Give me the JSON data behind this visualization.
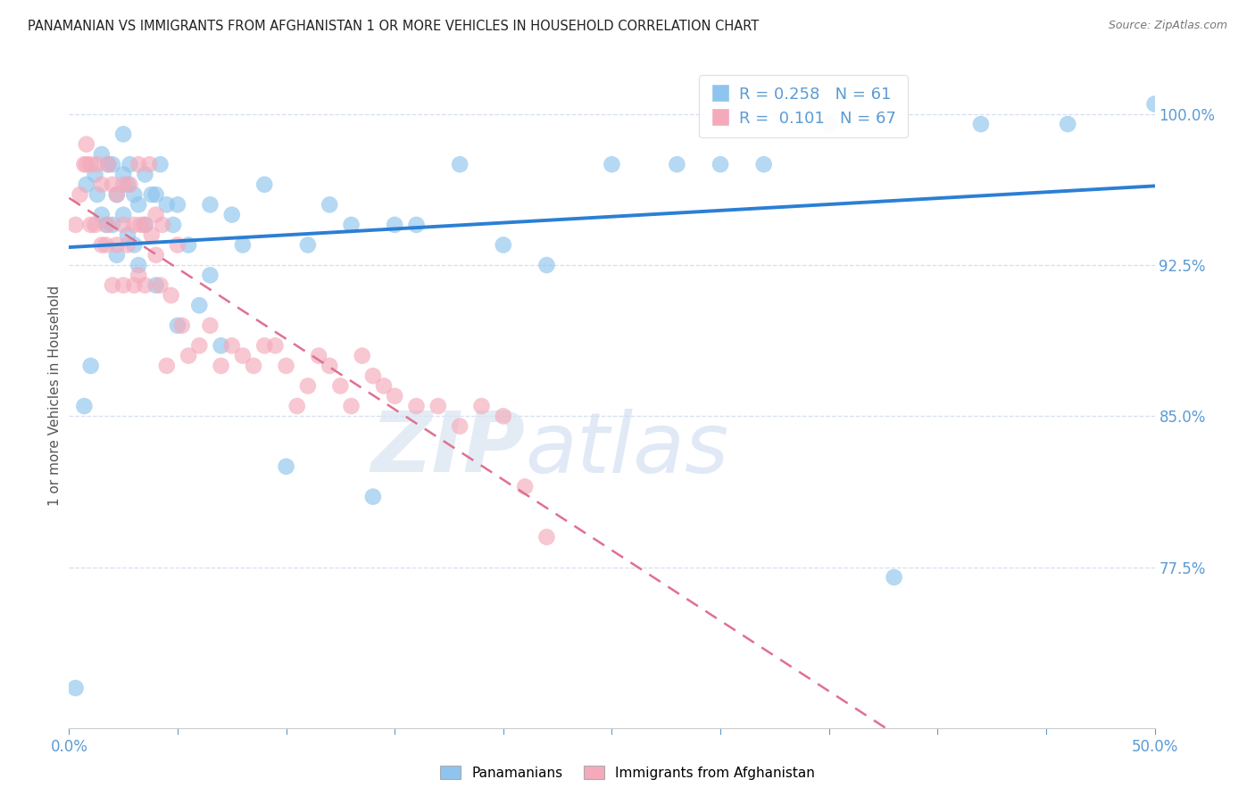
{
  "title": "PANAMANIAN VS IMMIGRANTS FROM AFGHANISTAN 1 OR MORE VEHICLES IN HOUSEHOLD CORRELATION CHART",
  "source": "Source: ZipAtlas.com",
  "ylabel": "1 or more Vehicles in Household",
  "xlim": [
    0.0,
    0.5
  ],
  "ylim": [
    0.695,
    1.025
  ],
  "yticks": [
    0.775,
    0.85,
    0.925,
    1.0
  ],
  "ytick_labels": [
    "77.5%",
    "85.0%",
    "92.5%",
    "100.0%"
  ],
  "xticks": [
    0.0,
    0.05,
    0.1,
    0.15,
    0.2,
    0.25,
    0.3,
    0.35,
    0.4,
    0.45,
    0.5
  ],
  "xtick_labels": [
    "0.0%",
    "",
    "",
    "",
    "",
    "",
    "",
    "",
    "",
    "",
    "50.0%"
  ],
  "blue_R": 0.258,
  "blue_N": 61,
  "pink_R": 0.101,
  "pink_N": 67,
  "legend_label_blue": "Panamanians",
  "legend_label_pink": "Immigrants from Afghanistan",
  "watermark_zip": "ZIP",
  "watermark_atlas": "atlas",
  "blue_color": "#8EC4EE",
  "pink_color": "#F4AABB",
  "axis_color": "#5B9BD5",
  "trend_blue_color": "#2B7FD4",
  "trend_pink_color": "#E07090",
  "grid_color": "#D5DEF0",
  "blue_scatter_x": [
    0.003,
    0.007,
    0.008,
    0.01,
    0.012,
    0.013,
    0.015,
    0.015,
    0.017,
    0.018,
    0.02,
    0.02,
    0.022,
    0.022,
    0.025,
    0.025,
    0.025,
    0.027,
    0.027,
    0.028,
    0.03,
    0.03,
    0.032,
    0.032,
    0.035,
    0.035,
    0.038,
    0.04,
    0.04,
    0.042,
    0.045,
    0.048,
    0.05,
    0.05,
    0.055,
    0.06,
    0.065,
    0.065,
    0.07,
    0.075,
    0.08,
    0.09,
    0.1,
    0.11,
    0.12,
    0.13,
    0.14,
    0.15,
    0.16,
    0.18,
    0.2,
    0.22,
    0.25,
    0.28,
    0.3,
    0.32,
    0.35,
    0.38,
    0.42,
    0.46,
    0.5
  ],
  "blue_scatter_y": [
    0.715,
    0.855,
    0.965,
    0.875,
    0.97,
    0.96,
    0.95,
    0.98,
    0.945,
    0.975,
    0.945,
    0.975,
    0.93,
    0.96,
    0.95,
    0.97,
    0.99,
    0.94,
    0.965,
    0.975,
    0.935,
    0.96,
    0.925,
    0.955,
    0.945,
    0.97,
    0.96,
    0.915,
    0.96,
    0.975,
    0.955,
    0.945,
    0.895,
    0.955,
    0.935,
    0.905,
    0.92,
    0.955,
    0.885,
    0.95,
    0.935,
    0.965,
    0.825,
    0.935,
    0.955,
    0.945,
    0.81,
    0.945,
    0.945,
    0.975,
    0.935,
    0.925,
    0.975,
    0.975,
    0.975,
    0.975,
    0.995,
    0.77,
    0.995,
    0.995,
    1.005
  ],
  "pink_scatter_x": [
    0.003,
    0.005,
    0.007,
    0.008,
    0.008,
    0.01,
    0.01,
    0.012,
    0.013,
    0.015,
    0.015,
    0.017,
    0.018,
    0.018,
    0.02,
    0.02,
    0.022,
    0.022,
    0.025,
    0.025,
    0.025,
    0.027,
    0.028,
    0.03,
    0.03,
    0.032,
    0.032,
    0.033,
    0.035,
    0.035,
    0.037,
    0.038,
    0.04,
    0.04,
    0.042,
    0.043,
    0.045,
    0.047,
    0.05,
    0.052,
    0.055,
    0.06,
    0.065,
    0.07,
    0.075,
    0.08,
    0.085,
    0.09,
    0.095,
    0.1,
    0.105,
    0.11,
    0.115,
    0.12,
    0.125,
    0.13,
    0.135,
    0.14,
    0.145,
    0.15,
    0.16,
    0.17,
    0.18,
    0.19,
    0.2,
    0.21,
    0.22
  ],
  "pink_scatter_y": [
    0.945,
    0.96,
    0.975,
    0.975,
    0.985,
    0.945,
    0.975,
    0.945,
    0.975,
    0.935,
    0.965,
    0.935,
    0.945,
    0.975,
    0.915,
    0.965,
    0.935,
    0.96,
    0.915,
    0.945,
    0.965,
    0.935,
    0.965,
    0.915,
    0.945,
    0.975,
    0.92,
    0.945,
    0.915,
    0.945,
    0.975,
    0.94,
    0.93,
    0.95,
    0.915,
    0.945,
    0.875,
    0.91,
    0.935,
    0.895,
    0.88,
    0.885,
    0.895,
    0.875,
    0.885,
    0.88,
    0.875,
    0.885,
    0.885,
    0.875,
    0.855,
    0.865,
    0.88,
    0.875,
    0.865,
    0.855,
    0.88,
    0.87,
    0.865,
    0.86,
    0.855,
    0.855,
    0.845,
    0.855,
    0.85,
    0.815,
    0.79
  ]
}
